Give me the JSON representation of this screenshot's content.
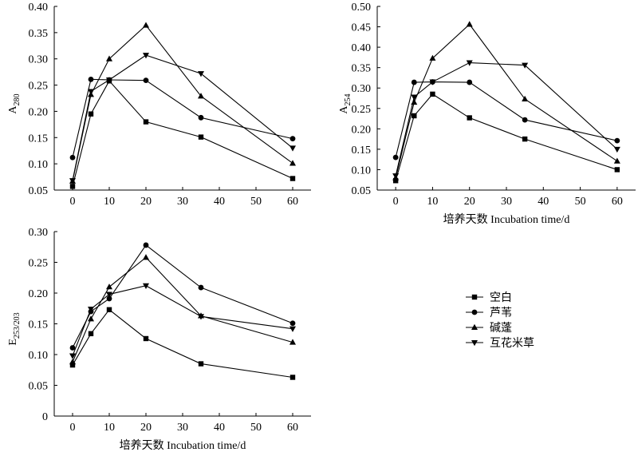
{
  "chart_data": [
    {
      "type": "line",
      "xlabel": "",
      "ylabel": "A",
      "ylabel_sub": "280",
      "x": [
        0,
        5,
        10,
        20,
        35,
        60
      ],
      "xticks": [
        "0",
        "10",
        "20",
        "30",
        "40",
        "50",
        "60"
      ],
      "xlim": [
        -5,
        65
      ],
      "ylim": [
        0.05,
        0.4
      ],
      "yticks": [
        "0.05",
        "0.10",
        "0.15",
        "0.20",
        "0.25",
        "0.30",
        "0.35",
        "0.40"
      ],
      "series": [
        {
          "name": "空白",
          "marker": "square",
          "values": [
            0.057,
            0.195,
            0.258,
            0.18,
            0.151,
            0.072
          ]
        },
        {
          "name": "芦苇",
          "marker": "circle",
          "values": [
            0.112,
            0.261,
            0.26,
            0.259,
            0.188,
            0.148
          ]
        },
        {
          "name": "碱蓬",
          "marker": "triangle-up",
          "values": [
            0.067,
            0.232,
            0.3,
            0.364,
            0.229,
            0.101
          ]
        },
        {
          "name": "互花米草",
          "marker": "triangle-down",
          "values": [
            0.068,
            0.238,
            0.26,
            0.307,
            0.272,
            0.13
          ]
        }
      ]
    },
    {
      "type": "line",
      "xlabel": "培养天数 Incubation time/d",
      "ylabel": "A",
      "ylabel_sub": "254",
      "x": [
        0,
        5,
        10,
        20,
        35,
        60
      ],
      "xticks": [
        "0",
        "10",
        "20",
        "30",
        "40",
        "50",
        "60"
      ],
      "xlim": [
        -5,
        65
      ],
      "ylim": [
        0.05,
        0.5
      ],
      "yticks": [
        "0.05",
        "0.10",
        "0.15",
        "0.20",
        "0.25",
        "0.30",
        "0.35",
        "0.40",
        "0.45",
        "0.50"
      ],
      "series": [
        {
          "name": "空白",
          "marker": "square",
          "values": [
            0.073,
            0.232,
            0.285,
            0.227,
            0.175,
            0.1
          ]
        },
        {
          "name": "芦苇",
          "marker": "circle",
          "values": [
            0.13,
            0.314,
            0.315,
            0.314,
            0.222,
            0.171
          ]
        },
        {
          "name": "碱蓬",
          "marker": "triangle-up",
          "values": [
            0.08,
            0.265,
            0.373,
            0.456,
            0.273,
            0.121
          ]
        },
        {
          "name": "互花米草",
          "marker": "triangle-down",
          "values": [
            0.085,
            0.278,
            0.315,
            0.362,
            0.356,
            0.15
          ]
        }
      ]
    },
    {
      "type": "line",
      "xlabel": "培养天数 Incubation time/d",
      "ylabel": "E",
      "ylabel_sub": "253/203",
      "x": [
        0,
        5,
        10,
        20,
        35,
        60
      ],
      "xticks": [
        "0",
        "10",
        "20",
        "30",
        "40",
        "50",
        "60"
      ],
      "xlim": [
        -5,
        65
      ],
      "ylim": [
        0,
        0.3
      ],
      "yticks": [
        "0",
        "0.05",
        "0.10",
        "0.15",
        "0.20",
        "0.25",
        "0.30"
      ],
      "series": [
        {
          "name": "空白",
          "marker": "square",
          "values": [
            0.083,
            0.134,
            0.173,
            0.126,
            0.085,
            0.063
          ]
        },
        {
          "name": "芦苇",
          "marker": "circle",
          "values": [
            0.111,
            0.17,
            0.191,
            0.278,
            0.209,
            0.151
          ]
        },
        {
          "name": "碱蓬",
          "marker": "triangle-up",
          "values": [
            0.088,
            0.158,
            0.21,
            0.258,
            0.163,
            0.12
          ]
        },
        {
          "name": "互花米草",
          "marker": "triangle-down",
          "values": [
            0.098,
            0.174,
            0.198,
            0.212,
            0.162,
            0.142
          ]
        }
      ]
    }
  ],
  "legend": {
    "placement": "right of bottom chart",
    "items": [
      {
        "name": "空白",
        "marker": "square"
      },
      {
        "name": "芦苇",
        "marker": "circle"
      },
      {
        "name": "碱蓬",
        "marker": "triangle-up"
      },
      {
        "name": "互花米草",
        "marker": "triangle-down"
      }
    ]
  }
}
